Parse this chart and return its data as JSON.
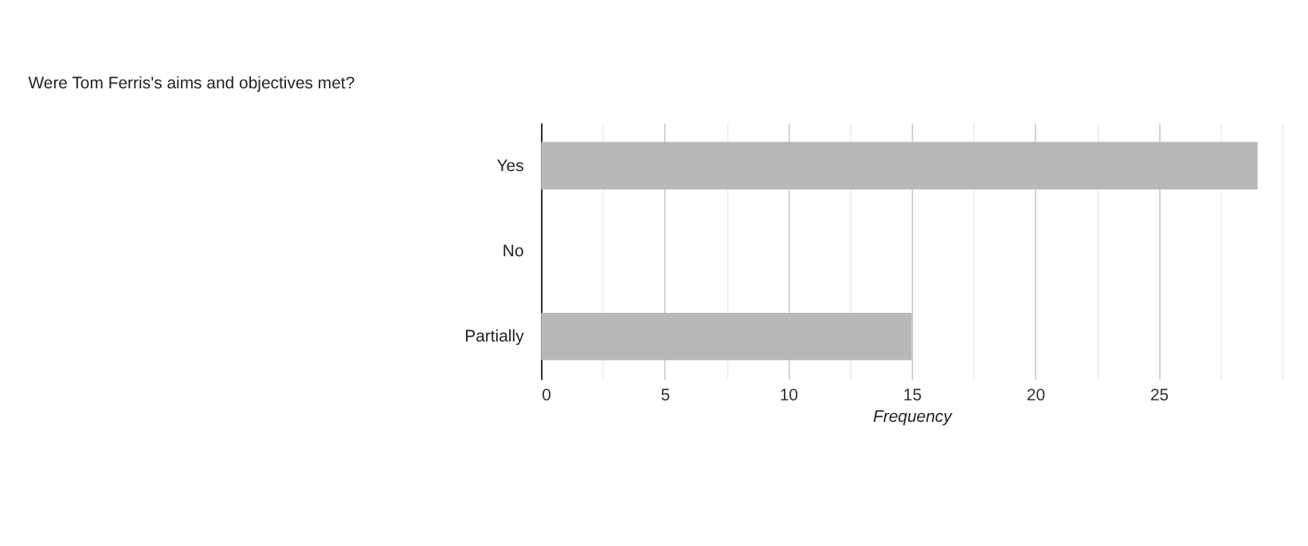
{
  "chart_data": {
    "type": "bar",
    "orientation": "horizontal",
    "title": "Were Tom Ferris's aims and objectives met?",
    "categories": [
      "Yes",
      "No",
      "Partially"
    ],
    "values": [
      29,
      0,
      15
    ],
    "color": "#b8b8b8",
    "xlabel": "Frequency",
    "xlim": [
      0,
      30
    ],
    "xticks": [
      0,
      {
        "value": 2.5,
        "label": null
      },
      5,
      {
        "value": 7.5,
        "label": null
      },
      10,
      {
        "value": 12.5,
        "label": null
      },
      15,
      {
        "value": 17.5,
        "label": null
      },
      20,
      {
        "value": 22.5,
        "label": null
      },
      25,
      {
        "value": 27.5,
        "label": null
      },
      {
        "value": 30,
        "label": null
      }
    ],
    "grid": true
  }
}
